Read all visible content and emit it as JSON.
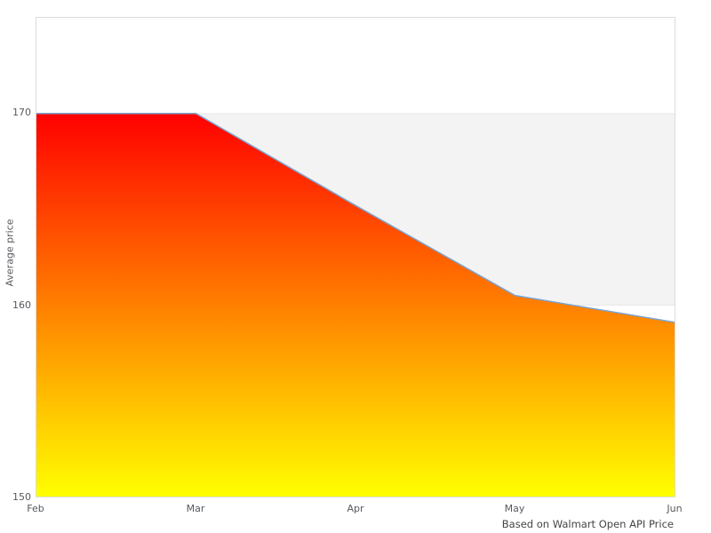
{
  "chart_data": {
    "type": "area",
    "categories": [
      "Feb",
      "Mar",
      "Apr",
      "May",
      "Jun"
    ],
    "values": [
      170,
      170,
      165.2,
      160.5,
      159.1
    ],
    "title": "",
    "xlabel": "",
    "ylabel": "Average price",
    "ylim": [
      150,
      175
    ],
    "yticks": [
      150,
      160,
      170
    ],
    "grid": "band",
    "grid_band": {
      "from": 160,
      "to": 170,
      "color": "#f3f3f3",
      "edge_color": "#e7e7e7"
    },
    "legend": "none",
    "line_color": "#7ba3cf",
    "fill_gradient": {
      "top_color": "#ff0000",
      "bottom_color": "#ffff00"
    },
    "caption": "Based on Walmart Open API Price"
  }
}
